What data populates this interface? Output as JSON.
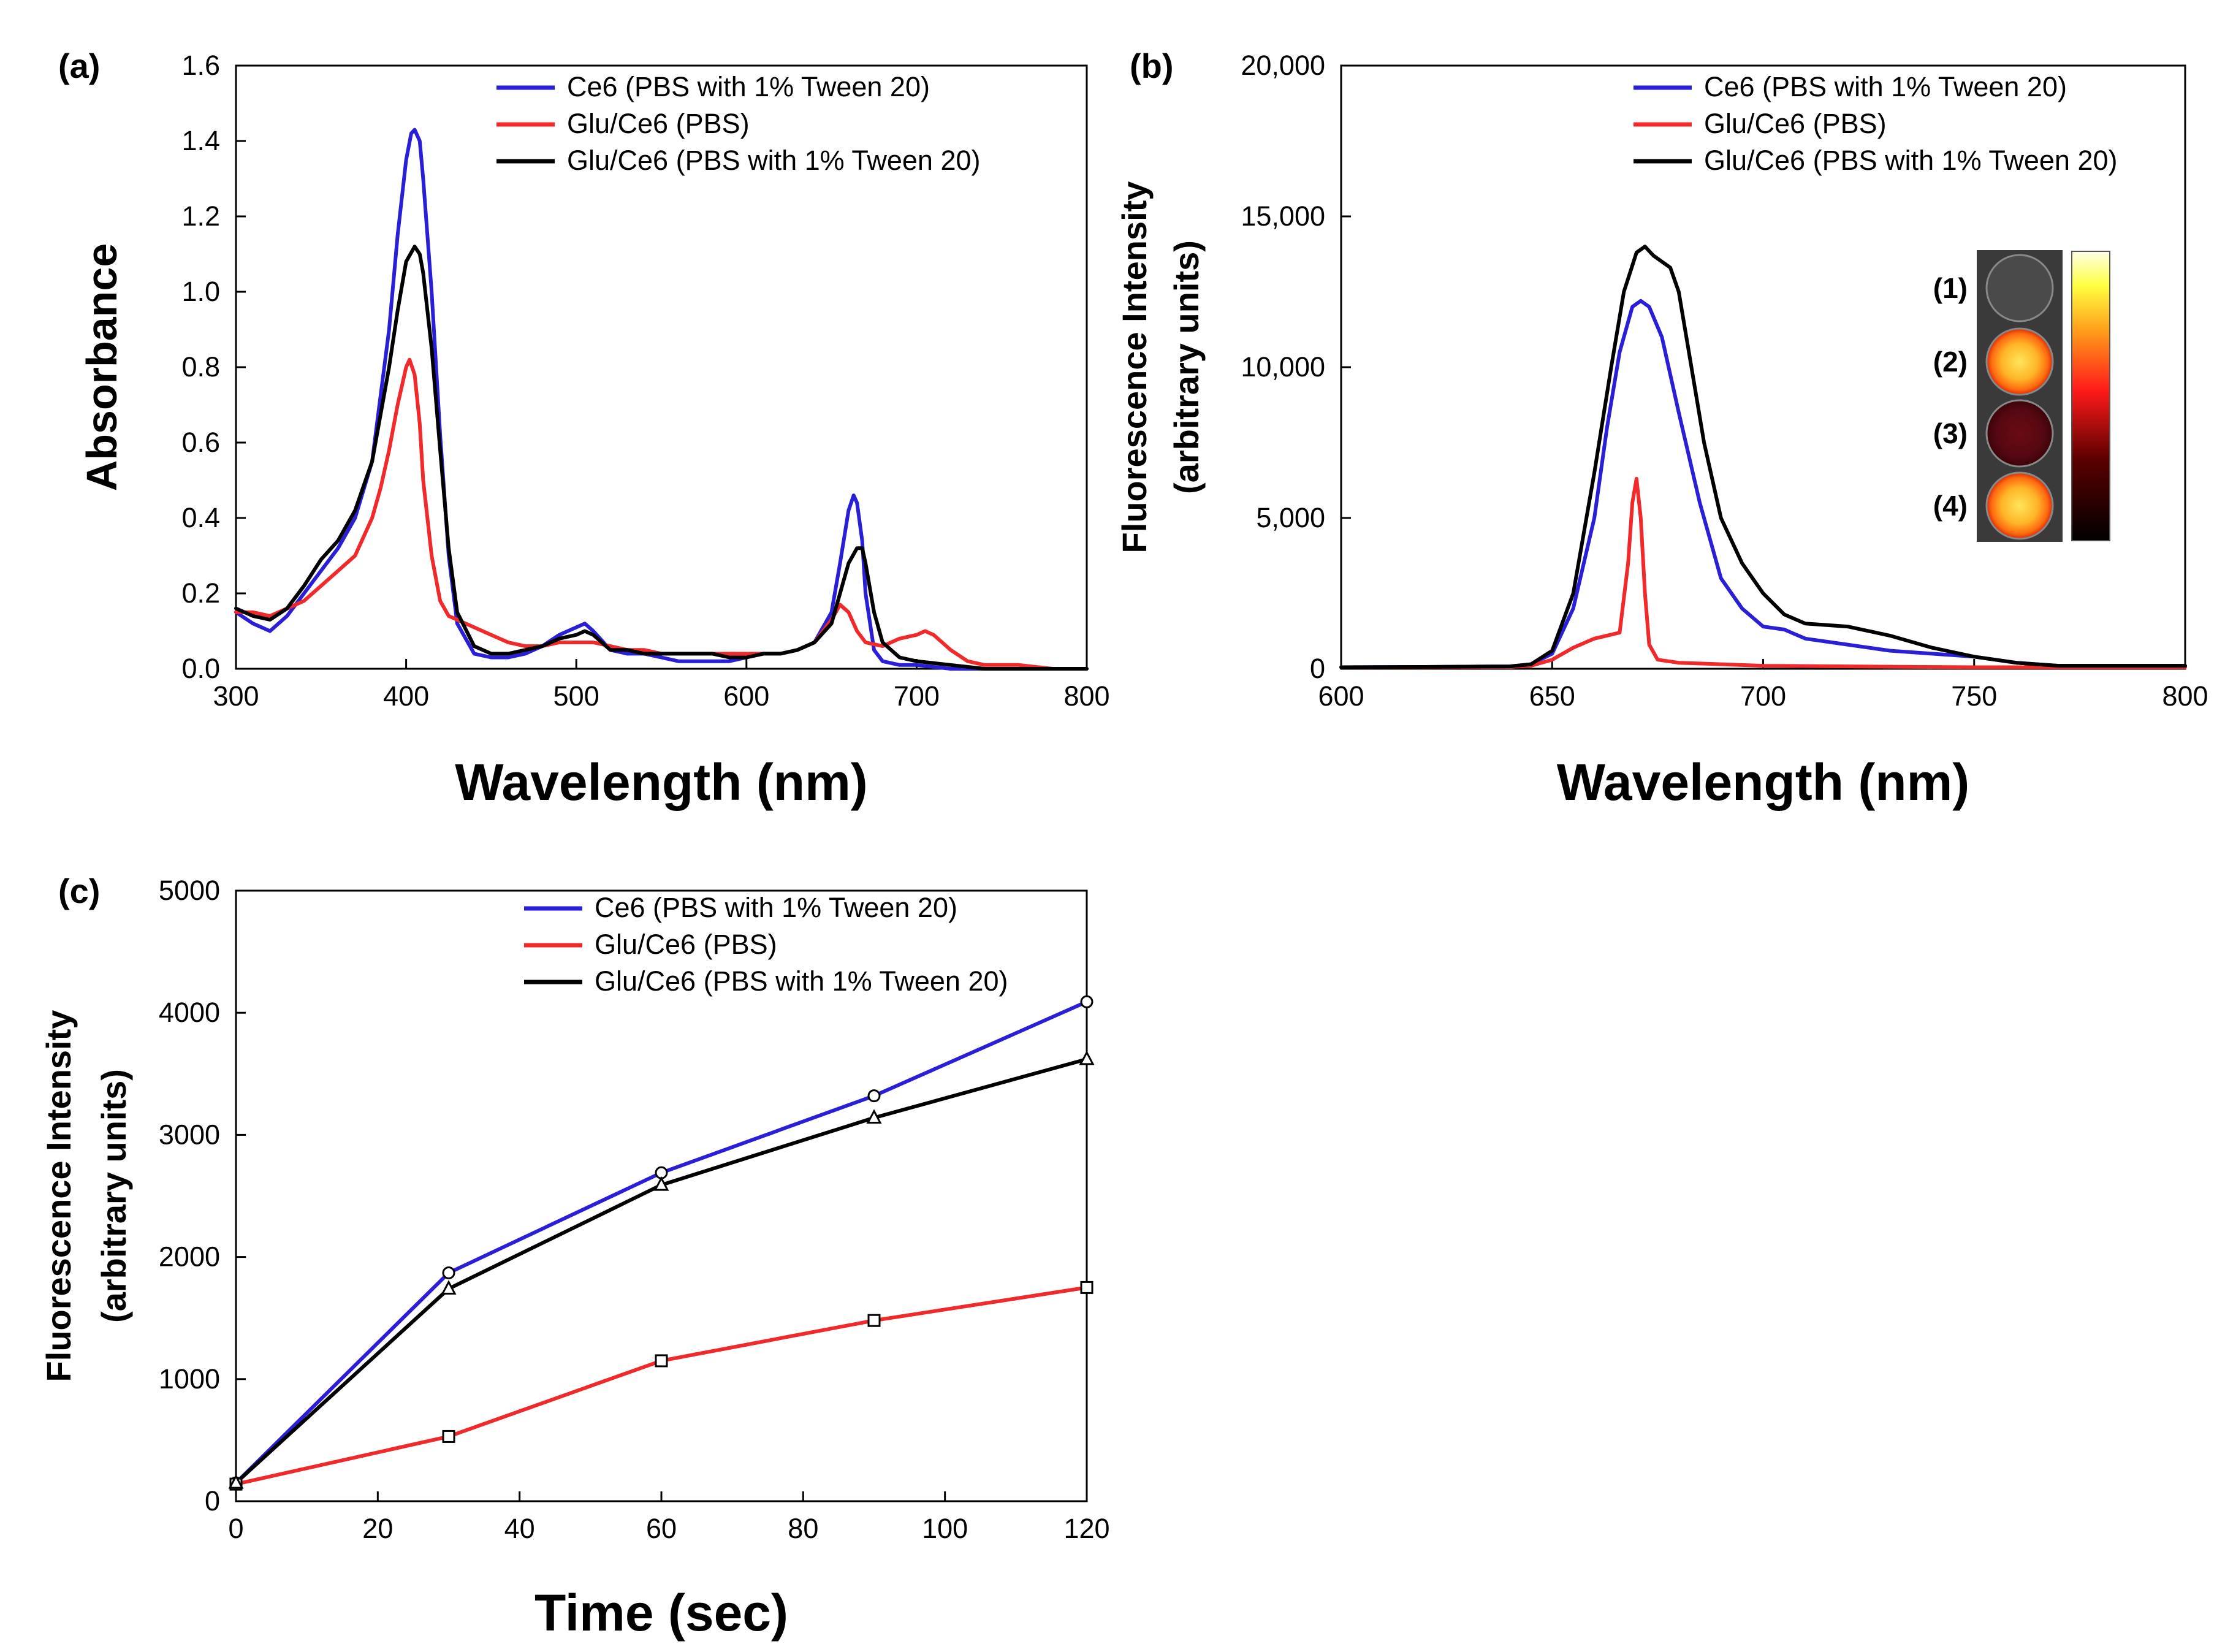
{
  "colors": {
    "ce6": "#2a1fd6",
    "glu_pbs": "#f02a2a",
    "glu_tween": "#000000"
  },
  "chart_data": [
    {
      "id": "a",
      "panel_label": "(a)",
      "type": "line",
      "xlabel": "Wavelength (nm)",
      "ylabel": "Absorbance",
      "xlim": [
        300,
        800
      ],
      "ylim": [
        0,
        1.6
      ],
      "xticks": [
        300,
        400,
        500,
        600,
        700,
        800
      ],
      "xtick_labels": [
        "300",
        "400",
        "500",
        "600",
        "700",
        "800"
      ],
      "yticks": [
        0,
        0.2,
        0.4,
        0.6,
        0.8,
        1.0,
        1.2,
        1.4,
        1.6
      ],
      "ytick_labels": [
        "0.0",
        "0.2",
        "0.4",
        "0.6",
        "0.8",
        "1.0",
        "1.2",
        "1.4",
        "1.6"
      ],
      "legend_position": "top-right",
      "series": [
        {
          "name": "Ce6 (PBS with 1% Tween 20)",
          "color_key": "ce6",
          "x": [
            300,
            310,
            320,
            330,
            340,
            350,
            360,
            370,
            380,
            390,
            395,
            400,
            403,
            405,
            408,
            410,
            415,
            420,
            425,
            430,
            440,
            450,
            460,
            470,
            480,
            490,
            500,
            505,
            510,
            520,
            530,
            540,
            550,
            560,
            570,
            580,
            590,
            600,
            610,
            620,
            630,
            640,
            650,
            655,
            660,
            663,
            665,
            668,
            670,
            675,
            680,
            690,
            700,
            720,
            740,
            760,
            780,
            800
          ],
          "y": [
            0.15,
            0.12,
            0.1,
            0.14,
            0.2,
            0.26,
            0.32,
            0.4,
            0.55,
            0.9,
            1.15,
            1.35,
            1.42,
            1.43,
            1.4,
            1.3,
            1.0,
            0.62,
            0.3,
            0.12,
            0.04,
            0.03,
            0.03,
            0.04,
            0.06,
            0.09,
            0.11,
            0.12,
            0.1,
            0.05,
            0.04,
            0.04,
            0.03,
            0.02,
            0.02,
            0.02,
            0.02,
            0.03,
            0.04,
            0.04,
            0.05,
            0.07,
            0.15,
            0.28,
            0.42,
            0.46,
            0.44,
            0.34,
            0.2,
            0.05,
            0.02,
            0.01,
            0.01,
            0.0,
            0.0,
            0.0,
            0.0,
            0.0
          ]
        },
        {
          "name": "Glu/Ce6 (PBS)",
          "color_key": "glu_pbs",
          "x": [
            300,
            310,
            320,
            330,
            340,
            350,
            360,
            370,
            380,
            385,
            390,
            395,
            400,
            402,
            405,
            408,
            410,
            415,
            420,
            425,
            430,
            440,
            450,
            460,
            470,
            480,
            490,
            500,
            510,
            520,
            530,
            540,
            550,
            560,
            570,
            580,
            590,
            600,
            610,
            620,
            630,
            640,
            645,
            650,
            655,
            660,
            665,
            670,
            680,
            690,
            700,
            705,
            710,
            720,
            730,
            740,
            760,
            780,
            800
          ],
          "y": [
            0.15,
            0.15,
            0.14,
            0.16,
            0.18,
            0.22,
            0.26,
            0.3,
            0.4,
            0.48,
            0.58,
            0.7,
            0.8,
            0.82,
            0.78,
            0.65,
            0.5,
            0.3,
            0.18,
            0.14,
            0.13,
            0.11,
            0.09,
            0.07,
            0.06,
            0.06,
            0.07,
            0.07,
            0.07,
            0.06,
            0.05,
            0.05,
            0.04,
            0.04,
            0.04,
            0.04,
            0.04,
            0.04,
            0.04,
            0.04,
            0.05,
            0.07,
            0.1,
            0.13,
            0.17,
            0.15,
            0.1,
            0.07,
            0.06,
            0.08,
            0.09,
            0.1,
            0.09,
            0.05,
            0.02,
            0.01,
            0.01,
            0.0,
            0.0
          ]
        },
        {
          "name": "Glu/Ce6 (PBS with 1% Tween 20)",
          "color_key": "glu_tween",
          "x": [
            300,
            310,
            320,
            330,
            340,
            350,
            360,
            370,
            380,
            390,
            395,
            400,
            405,
            408,
            410,
            415,
            420,
            425,
            430,
            440,
            450,
            460,
            470,
            480,
            490,
            500,
            505,
            510,
            520,
            530,
            540,
            550,
            560,
            570,
            580,
            590,
            600,
            610,
            620,
            630,
            640,
            650,
            655,
            660,
            665,
            668,
            670,
            675,
            680,
            690,
            700,
            720,
            740,
            760,
            780,
            800
          ],
          "y": [
            0.16,
            0.14,
            0.13,
            0.16,
            0.22,
            0.29,
            0.34,
            0.42,
            0.55,
            0.8,
            0.95,
            1.08,
            1.12,
            1.1,
            1.05,
            0.85,
            0.58,
            0.32,
            0.15,
            0.06,
            0.04,
            0.04,
            0.05,
            0.06,
            0.08,
            0.09,
            0.1,
            0.09,
            0.05,
            0.05,
            0.04,
            0.04,
            0.04,
            0.04,
            0.04,
            0.03,
            0.03,
            0.04,
            0.04,
            0.05,
            0.07,
            0.12,
            0.2,
            0.28,
            0.32,
            0.32,
            0.28,
            0.15,
            0.07,
            0.03,
            0.02,
            0.01,
            0.0,
            0.0,
            0.0,
            0.0
          ]
        }
      ]
    },
    {
      "id": "b",
      "panel_label": "(b)",
      "type": "line",
      "xlabel": "Wavelength (nm)",
      "ylabel_line1": "Fluorescence Intensity",
      "ylabel_line2": "(arbitrary units)",
      "xlim": [
        600,
        800
      ],
      "ylim": [
        0,
        20000
      ],
      "xticks": [
        600,
        650,
        700,
        750,
        800
      ],
      "xtick_labels": [
        "600",
        "650",
        "700",
        "750",
        "800"
      ],
      "yticks": [
        0,
        5000,
        10000,
        15000,
        20000
      ],
      "ytick_labels": [
        "0",
        "5,000",
        "10,000",
        "15,000",
        "20,000"
      ],
      "legend_position": "top-right",
      "inset": {
        "labels": [
          "(1)",
          "(2)",
          "(3)",
          "(4)"
        ],
        "position": "right"
      },
      "series": [
        {
          "name": "Ce6 (PBS with 1% Tween 20)",
          "color_key": "ce6",
          "x": [
            600,
            620,
            640,
            645,
            650,
            655,
            660,
            663,
            666,
            669,
            671,
            673,
            676,
            680,
            685,
            690,
            695,
            700,
            705,
            710,
            720,
            730,
            740,
            750,
            760,
            770,
            780,
            790,
            800
          ],
          "y": [
            50,
            60,
            80,
            150,
            500,
            2000,
            5000,
            8000,
            10500,
            12000,
            12200,
            12000,
            11000,
            8500,
            5500,
            3000,
            2000,
            1400,
            1300,
            1000,
            800,
            600,
            500,
            400,
            200,
            100,
            100,
            100,
            100
          ]
        },
        {
          "name": "Glu/Ce6 (PBS)",
          "color_key": "glu_pbs",
          "x": [
            600,
            620,
            640,
            645,
            650,
            655,
            660,
            663,
            666,
            668,
            669,
            670,
            671,
            672,
            673,
            675,
            680,
            690,
            700,
            720,
            750,
            780,
            800
          ],
          "y": [
            50,
            50,
            60,
            100,
            300,
            700,
            1000,
            1100,
            1200,
            3500,
            5500,
            6300,
            5000,
            2500,
            800,
            300,
            200,
            150,
            100,
            80,
            50,
            50,
            50
          ]
        },
        {
          "name": "Glu/Ce6 (PBS with 1% Tween 20)",
          "color_key": "glu_tween",
          "x": [
            600,
            620,
            640,
            645,
            650,
            655,
            660,
            664,
            667,
            670,
            672,
            674,
            676,
            678,
            680,
            683,
            686,
            690,
            695,
            700,
            705,
            710,
            720,
            730,
            740,
            750,
            760,
            770,
            780,
            790,
            800
          ],
          "y": [
            50,
            60,
            80,
            150,
            600,
            2500,
            6500,
            10000,
            12500,
            13800,
            14000,
            13700,
            13500,
            13300,
            12500,
            10000,
            7500,
            5000,
            3500,
            2500,
            1800,
            1500,
            1400,
            1100,
            700,
            400,
            200,
            100,
            100,
            100,
            100
          ]
        }
      ]
    },
    {
      "id": "c",
      "panel_label": "(c)",
      "type": "line",
      "xlabel": "Time (sec)",
      "ylabel_line1": "Fluorescence Intensity",
      "ylabel_line2": "(arbitrary units)",
      "xlim": [
        0,
        120
      ],
      "ylim": [
        0,
        5000
      ],
      "xticks": [
        0,
        20,
        40,
        60,
        80,
        100,
        120
      ],
      "xtick_labels": [
        "0",
        "20",
        "40",
        "60",
        "80",
        "100",
        "120"
      ],
      "yticks": [
        0,
        1000,
        2000,
        3000,
        4000,
        5000
      ],
      "ytick_labels": [
        "0",
        "1000",
        "2000",
        "3000",
        "4000",
        "5000"
      ],
      "legend_position": "top-right",
      "series": [
        {
          "name": "Ce6 (PBS with 1% Tween 20)",
          "color_key": "ce6",
          "marker": "circle",
          "x": [
            0,
            30,
            60,
            90,
            120
          ],
          "y": [
            150,
            1870,
            2690,
            3320,
            4090
          ]
        },
        {
          "name": "Glu/Ce6 (PBS)",
          "color_key": "glu_pbs",
          "marker": "square",
          "x": [
            0,
            30,
            60,
            90,
            120
          ],
          "y": [
            140,
            530,
            1150,
            1480,
            1750
          ]
        },
        {
          "name": "Glu/Ce6 (PBS with 1% Tween 20)",
          "color_key": "glu_tween",
          "marker": "triangle",
          "x": [
            0,
            30,
            60,
            90,
            120
          ],
          "y": [
            150,
            1740,
            2590,
            3140,
            3620
          ]
        }
      ]
    }
  ]
}
